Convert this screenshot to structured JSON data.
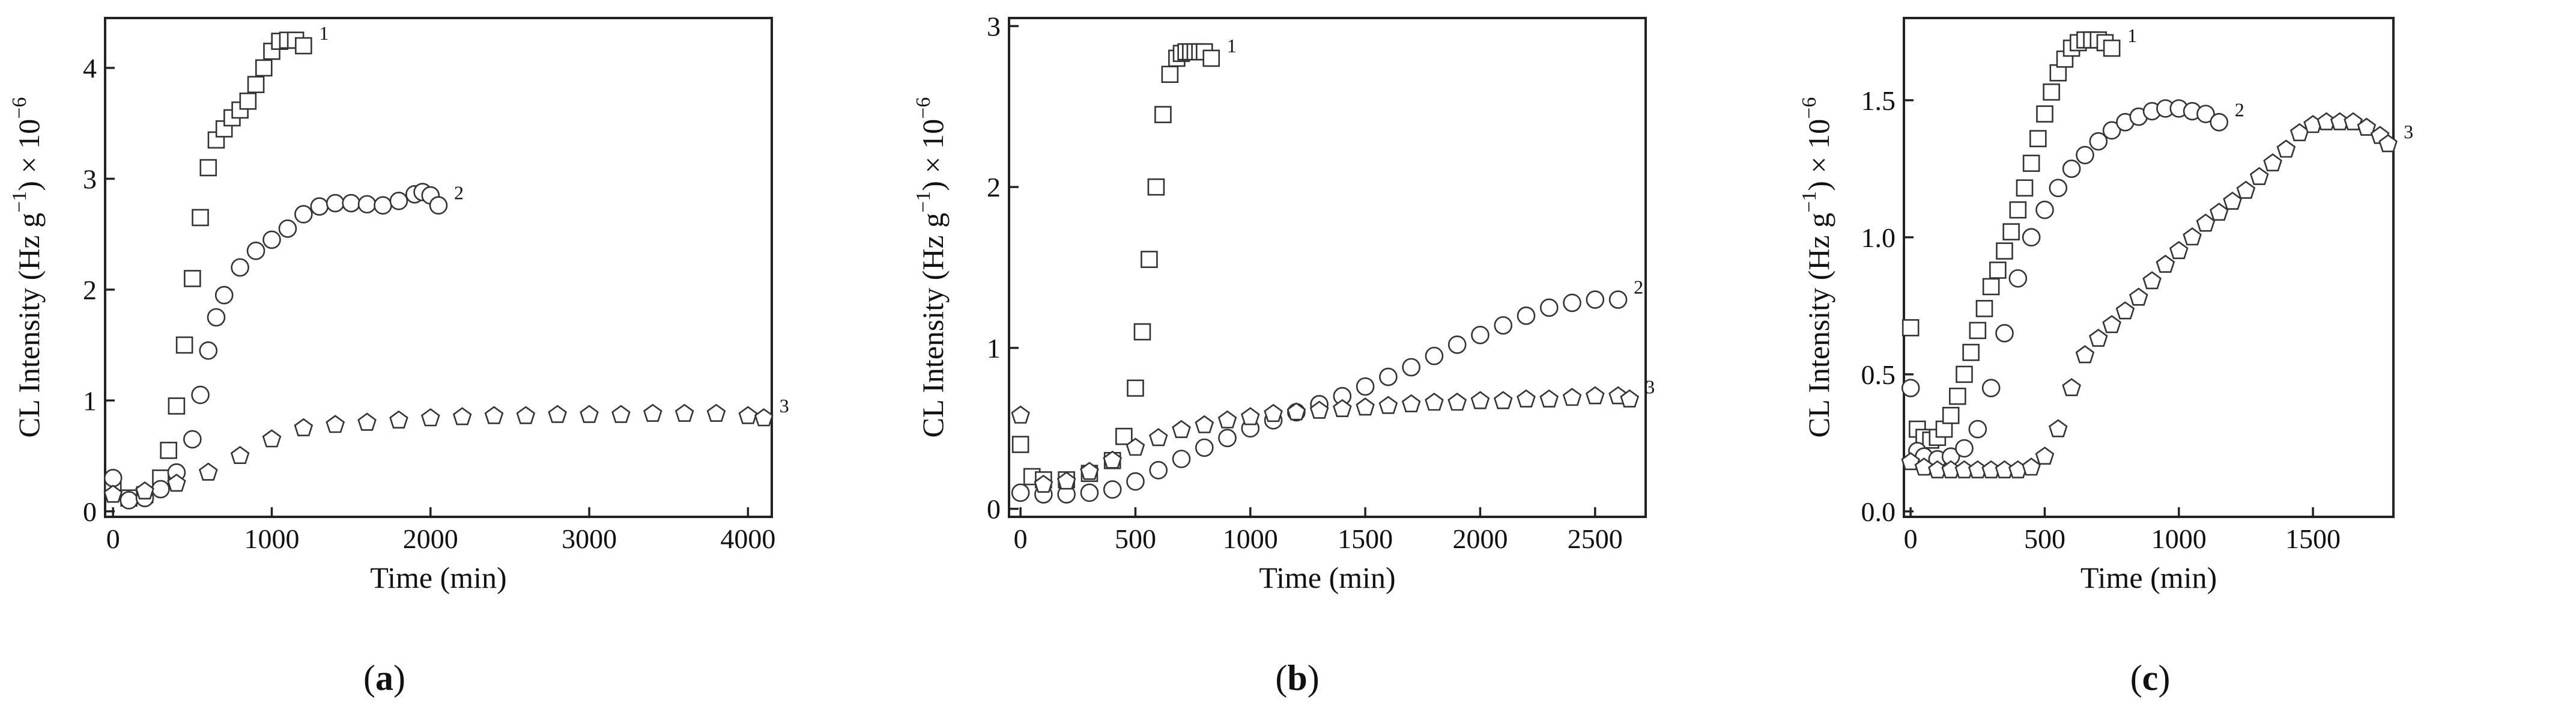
{
  "chart_data": [
    {
      "type": "scatter",
      "panel_label": "a",
      "xlabel": "Time (min)",
      "ylabel": "CL Intensity (Hz g",
      "ylabel_exp1": "−1",
      "ylabel_tail": ") × 10",
      "ylabel_exp2": "−6",
      "xlim": [
        -50,
        4150
      ],
      "ylim": [
        -0.05,
        4.45
      ],
      "xticks": [
        0,
        1000,
        2000,
        3000,
        4000
      ],
      "yticks": [
        0,
        1,
        2,
        3,
        4
      ],
      "series": [
        {
          "name": "1",
          "marker": "square",
          "x": [
            0,
            100,
            200,
            300,
            350,
            400,
            450,
            500,
            550,
            600,
            650,
            700,
            750,
            800,
            850,
            900,
            950,
            1000,
            1050,
            1100,
            1150,
            1200
          ],
          "y": [
            0.25,
            0.12,
            0.15,
            0.3,
            0.55,
            0.95,
            1.5,
            2.1,
            2.65,
            3.1,
            3.35,
            3.45,
            3.55,
            3.62,
            3.7,
            3.85,
            4.0,
            4.15,
            4.24,
            4.25,
            4.25,
            4.2
          ]
        },
        {
          "name": "2",
          "marker": "circle",
          "x": [
            0,
            100,
            200,
            300,
            400,
            500,
            550,
            600,
            650,
            700,
            800,
            900,
            1000,
            1100,
            1200,
            1300,
            1400,
            1500,
            1600,
            1700,
            1800,
            1900,
            1950,
            2000,
            2050
          ],
          "y": [
            0.3,
            0.1,
            0.12,
            0.2,
            0.35,
            0.65,
            1.05,
            1.45,
            1.75,
            1.95,
            2.2,
            2.35,
            2.45,
            2.55,
            2.68,
            2.75,
            2.78,
            2.78,
            2.77,
            2.76,
            2.8,
            2.86,
            2.88,
            2.85,
            2.76
          ]
        },
        {
          "name": "3",
          "marker": "pentagon",
          "x": [
            0,
            200,
            400,
            600,
            800,
            1000,
            1200,
            1400,
            1600,
            1800,
            2000,
            2200,
            2400,
            2600,
            2800,
            3000,
            3200,
            3400,
            3600,
            3800,
            4000,
            4100
          ],
          "y": [
            0.15,
            0.18,
            0.25,
            0.35,
            0.5,
            0.65,
            0.75,
            0.78,
            0.8,
            0.82,
            0.84,
            0.85,
            0.86,
            0.86,
            0.87,
            0.87,
            0.87,
            0.88,
            0.88,
            0.88,
            0.86,
            0.84
          ]
        }
      ]
    },
    {
      "type": "scatter",
      "panel_label": "b",
      "xlabel": "Time (min)",
      "ylabel": "CL Intensity (Hz g",
      "ylabel_exp1": "−1",
      "ylabel_tail": ") × 10",
      "ylabel_exp2": "−6",
      "xlim": [
        -50,
        2720
      ],
      "ylim": [
        -0.05,
        3.05
      ],
      "xticks": [
        0,
        500,
        1000,
        1500,
        2000,
        2500
      ],
      "yticks": [
        0,
        1,
        2,
        3
      ],
      "series": [
        {
          "name": "1",
          "marker": "square",
          "x": [
            0,
            50,
            100,
            200,
            300,
            400,
            450,
            500,
            530,
            560,
            590,
            620,
            650,
            680,
            700,
            720,
            740,
            760,
            780,
            800,
            830
          ],
          "y": [
            0.4,
            0.2,
            0.18,
            0.18,
            0.22,
            0.3,
            0.45,
            0.75,
            1.1,
            1.55,
            2.0,
            2.45,
            2.7,
            2.8,
            2.83,
            2.84,
            2.84,
            2.84,
            2.84,
            2.84,
            2.8
          ]
        },
        {
          "name": "2",
          "marker": "circle",
          "x": [
            0,
            100,
            200,
            300,
            400,
            500,
            600,
            700,
            800,
            900,
            1000,
            1100,
            1200,
            1300,
            1400,
            1500,
            1600,
            1700,
            1800,
            1900,
            2000,
            2100,
            2200,
            2300,
            2400,
            2500,
            2600
          ],
          "y": [
            0.1,
            0.09,
            0.09,
            0.1,
            0.12,
            0.17,
            0.24,
            0.31,
            0.38,
            0.44,
            0.5,
            0.55,
            0.6,
            0.65,
            0.7,
            0.76,
            0.82,
            0.88,
            0.95,
            1.02,
            1.08,
            1.14,
            1.2,
            1.25,
            1.28,
            1.3,
            1.3
          ]
        },
        {
          "name": "3",
          "marker": "pentagon",
          "x": [
            0,
            100,
            200,
            300,
            400,
            500,
            600,
            700,
            800,
            900,
            1000,
            1100,
            1200,
            1300,
            1400,
            1500,
            1600,
            1700,
            1800,
            1900,
            2000,
            2100,
            2200,
            2300,
            2400,
            2500,
            2600,
            2650
          ],
          "y": [
            0.58,
            0.15,
            0.17,
            0.23,
            0.3,
            0.38,
            0.44,
            0.49,
            0.52,
            0.55,
            0.57,
            0.59,
            0.6,
            0.61,
            0.62,
            0.63,
            0.64,
            0.65,
            0.66,
            0.66,
            0.67,
            0.67,
            0.68,
            0.68,
            0.69,
            0.7,
            0.7,
            0.68
          ]
        }
      ]
    },
    {
      "type": "scatter",
      "panel_label": "c",
      "xlabel": "Time (min)",
      "ylabel": "CL Intensity (Hz g",
      "ylabel_exp1": "−1",
      "ylabel_tail": ") × 10",
      "ylabel_exp2": "−6",
      "xlim": [
        -25,
        1800
      ],
      "ylim": [
        -0.02,
        1.8
      ],
      "xticks": [
        0,
        500,
        1000,
        1500
      ],
      "yticks": [
        0.0,
        0.5,
        1.0,
        1.5
      ],
      "yticklabels": [
        "0.0",
        "0.5",
        "1.0",
        "1.5"
      ],
      "series": [
        {
          "name": "1",
          "marker": "square",
          "x": [
            0,
            25,
            50,
            75,
            100,
            125,
            150,
            175,
            200,
            225,
            250,
            275,
            300,
            325,
            350,
            375,
            400,
            425,
            450,
            475,
            500,
            525,
            550,
            575,
            600,
            625,
            650,
            675,
            700,
            725,
            750
          ],
          "y": [
            0.67,
            0.3,
            0.27,
            0.26,
            0.27,
            0.3,
            0.35,
            0.42,
            0.5,
            0.58,
            0.66,
            0.74,
            0.82,
            0.88,
            0.95,
            1.02,
            1.1,
            1.18,
            1.27,
            1.36,
            1.45,
            1.53,
            1.6,
            1.65,
            1.69,
            1.71,
            1.72,
            1.72,
            1.72,
            1.71,
            1.69
          ]
        },
        {
          "name": "2",
          "marker": "circle",
          "x": [
            0,
            25,
            50,
            100,
            150,
            200,
            250,
            300,
            350,
            400,
            450,
            500,
            550,
            600,
            650,
            700,
            750,
            800,
            850,
            900,
            950,
            1000,
            1050,
            1100,
            1150
          ],
          "y": [
            0.45,
            0.22,
            0.2,
            0.19,
            0.2,
            0.23,
            0.3,
            0.45,
            0.65,
            0.85,
            1.0,
            1.1,
            1.18,
            1.25,
            1.3,
            1.35,
            1.39,
            1.42,
            1.44,
            1.46,
            1.47,
            1.47,
            1.46,
            1.45,
            1.42
          ]
        },
        {
          "name": "3",
          "marker": "pentagon",
          "x": [
            0,
            50,
            100,
            150,
            200,
            250,
            300,
            350,
            400,
            450,
            500,
            550,
            600,
            650,
            700,
            750,
            800,
            850,
            900,
            950,
            1000,
            1050,
            1100,
            1150,
            1200,
            1250,
            1300,
            1350,
            1400,
            1450,
            1500,
            1550,
            1600,
            1650,
            1700,
            1750,
            1780
          ],
          "y": [
            0.18,
            0.16,
            0.15,
            0.15,
            0.15,
            0.15,
            0.15,
            0.15,
            0.15,
            0.16,
            0.2,
            0.3,
            0.45,
            0.57,
            0.63,
            0.68,
            0.73,
            0.78,
            0.84,
            0.9,
            0.95,
            1.0,
            1.05,
            1.09,
            1.13,
            1.17,
            1.22,
            1.27,
            1.32,
            1.38,
            1.41,
            1.42,
            1.42,
            1.42,
            1.4,
            1.37,
            1.34
          ]
        }
      ]
    }
  ]
}
